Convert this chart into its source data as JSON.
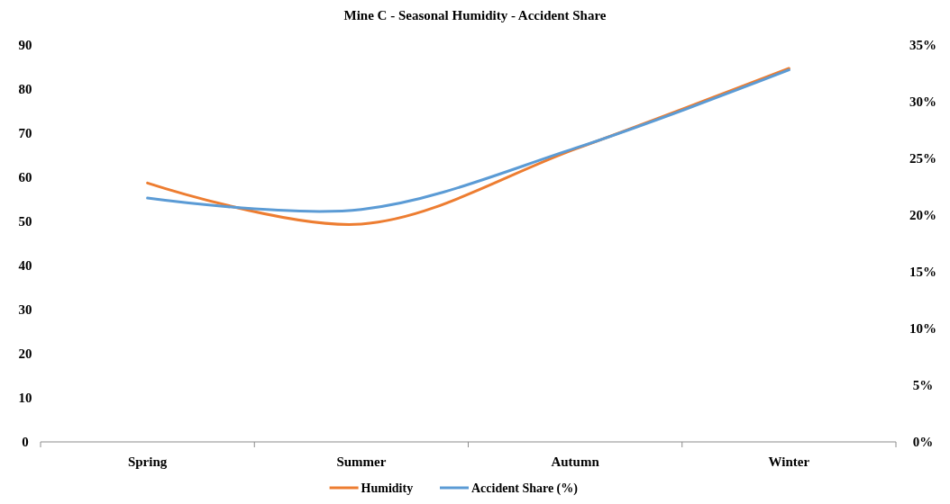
{
  "chart_data": {
    "type": "line",
    "title": "Mine C - Seasonal Humidity - Accident Share",
    "categories": [
      "Spring",
      "Summer",
      "Autumn",
      "Winter"
    ],
    "series": [
      {
        "name": "Humidity",
        "color": "#ed7d31",
        "values": [
          58.7,
          49.4,
          66.4,
          84.7
        ]
      },
      {
        "name": "Accident Share (%)",
        "color": "#5b9bd5",
        "values": [
          21.5,
          20.5,
          25.9,
          32.8
        ],
        "axis": "y2"
      }
    ],
    "ylim": [
      0,
      90
    ],
    "yticks": [
      0,
      10,
      20,
      30,
      40,
      50,
      60,
      70,
      80,
      90
    ],
    "y2lim": [
      0,
      35
    ],
    "y2ticks": [
      {
        "value": 0,
        "label": "0%"
      },
      {
        "value": 5,
        "label": "5%"
      },
      {
        "value": 10,
        "label": "10%"
      },
      {
        "value": 15,
        "label": "15%"
      },
      {
        "value": 20,
        "label": "20%"
      },
      {
        "value": 25,
        "label": "25%"
      },
      {
        "value": 30,
        "label": "30%"
      },
      {
        "value": 35,
        "label": "35%"
      }
    ],
    "legend": "bottom",
    "grid": false,
    "marker": "none",
    "line_style": "solid"
  }
}
